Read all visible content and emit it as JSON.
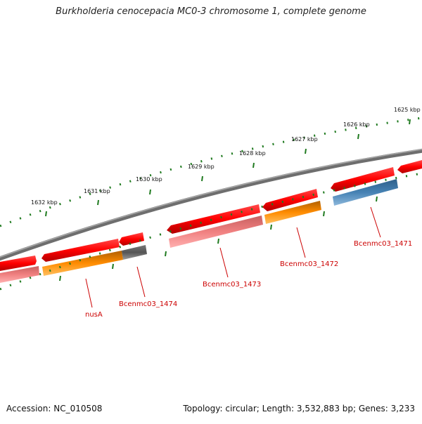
{
  "title": "Burkholderia cenocepacia MC0-3 chromosome 1, complete genome",
  "accession": "Accession: NC_010508",
  "topology": "Topology: circular; Length: 3,532,883 bp; Genes: 3,233",
  "scale_labels": [
    "1625 kbp",
    "1626 kbp",
    "1627 kbp",
    "1628 kbp",
    "1629 kbp",
    "1630 kbp",
    "1631 kbp",
    "1632 kbp"
  ],
  "gene_labels": [
    "Bcenmc03_1471",
    "Bcenmc03_1472",
    "Bcenmc03_1473",
    "Bcenmc03_1474",
    "nusA"
  ],
  "colors": {
    "backbone": "#7a7a7a",
    "cds_forward": "#e8000b",
    "cds_reverse": "#e8000b",
    "light_red": "#f08080",
    "orange": "#ff8c00",
    "gray_feature": "#555555",
    "steel_blue": "#4682b4",
    "ticks": "#1f7a1f",
    "gene_label": "#cc0000"
  }
}
